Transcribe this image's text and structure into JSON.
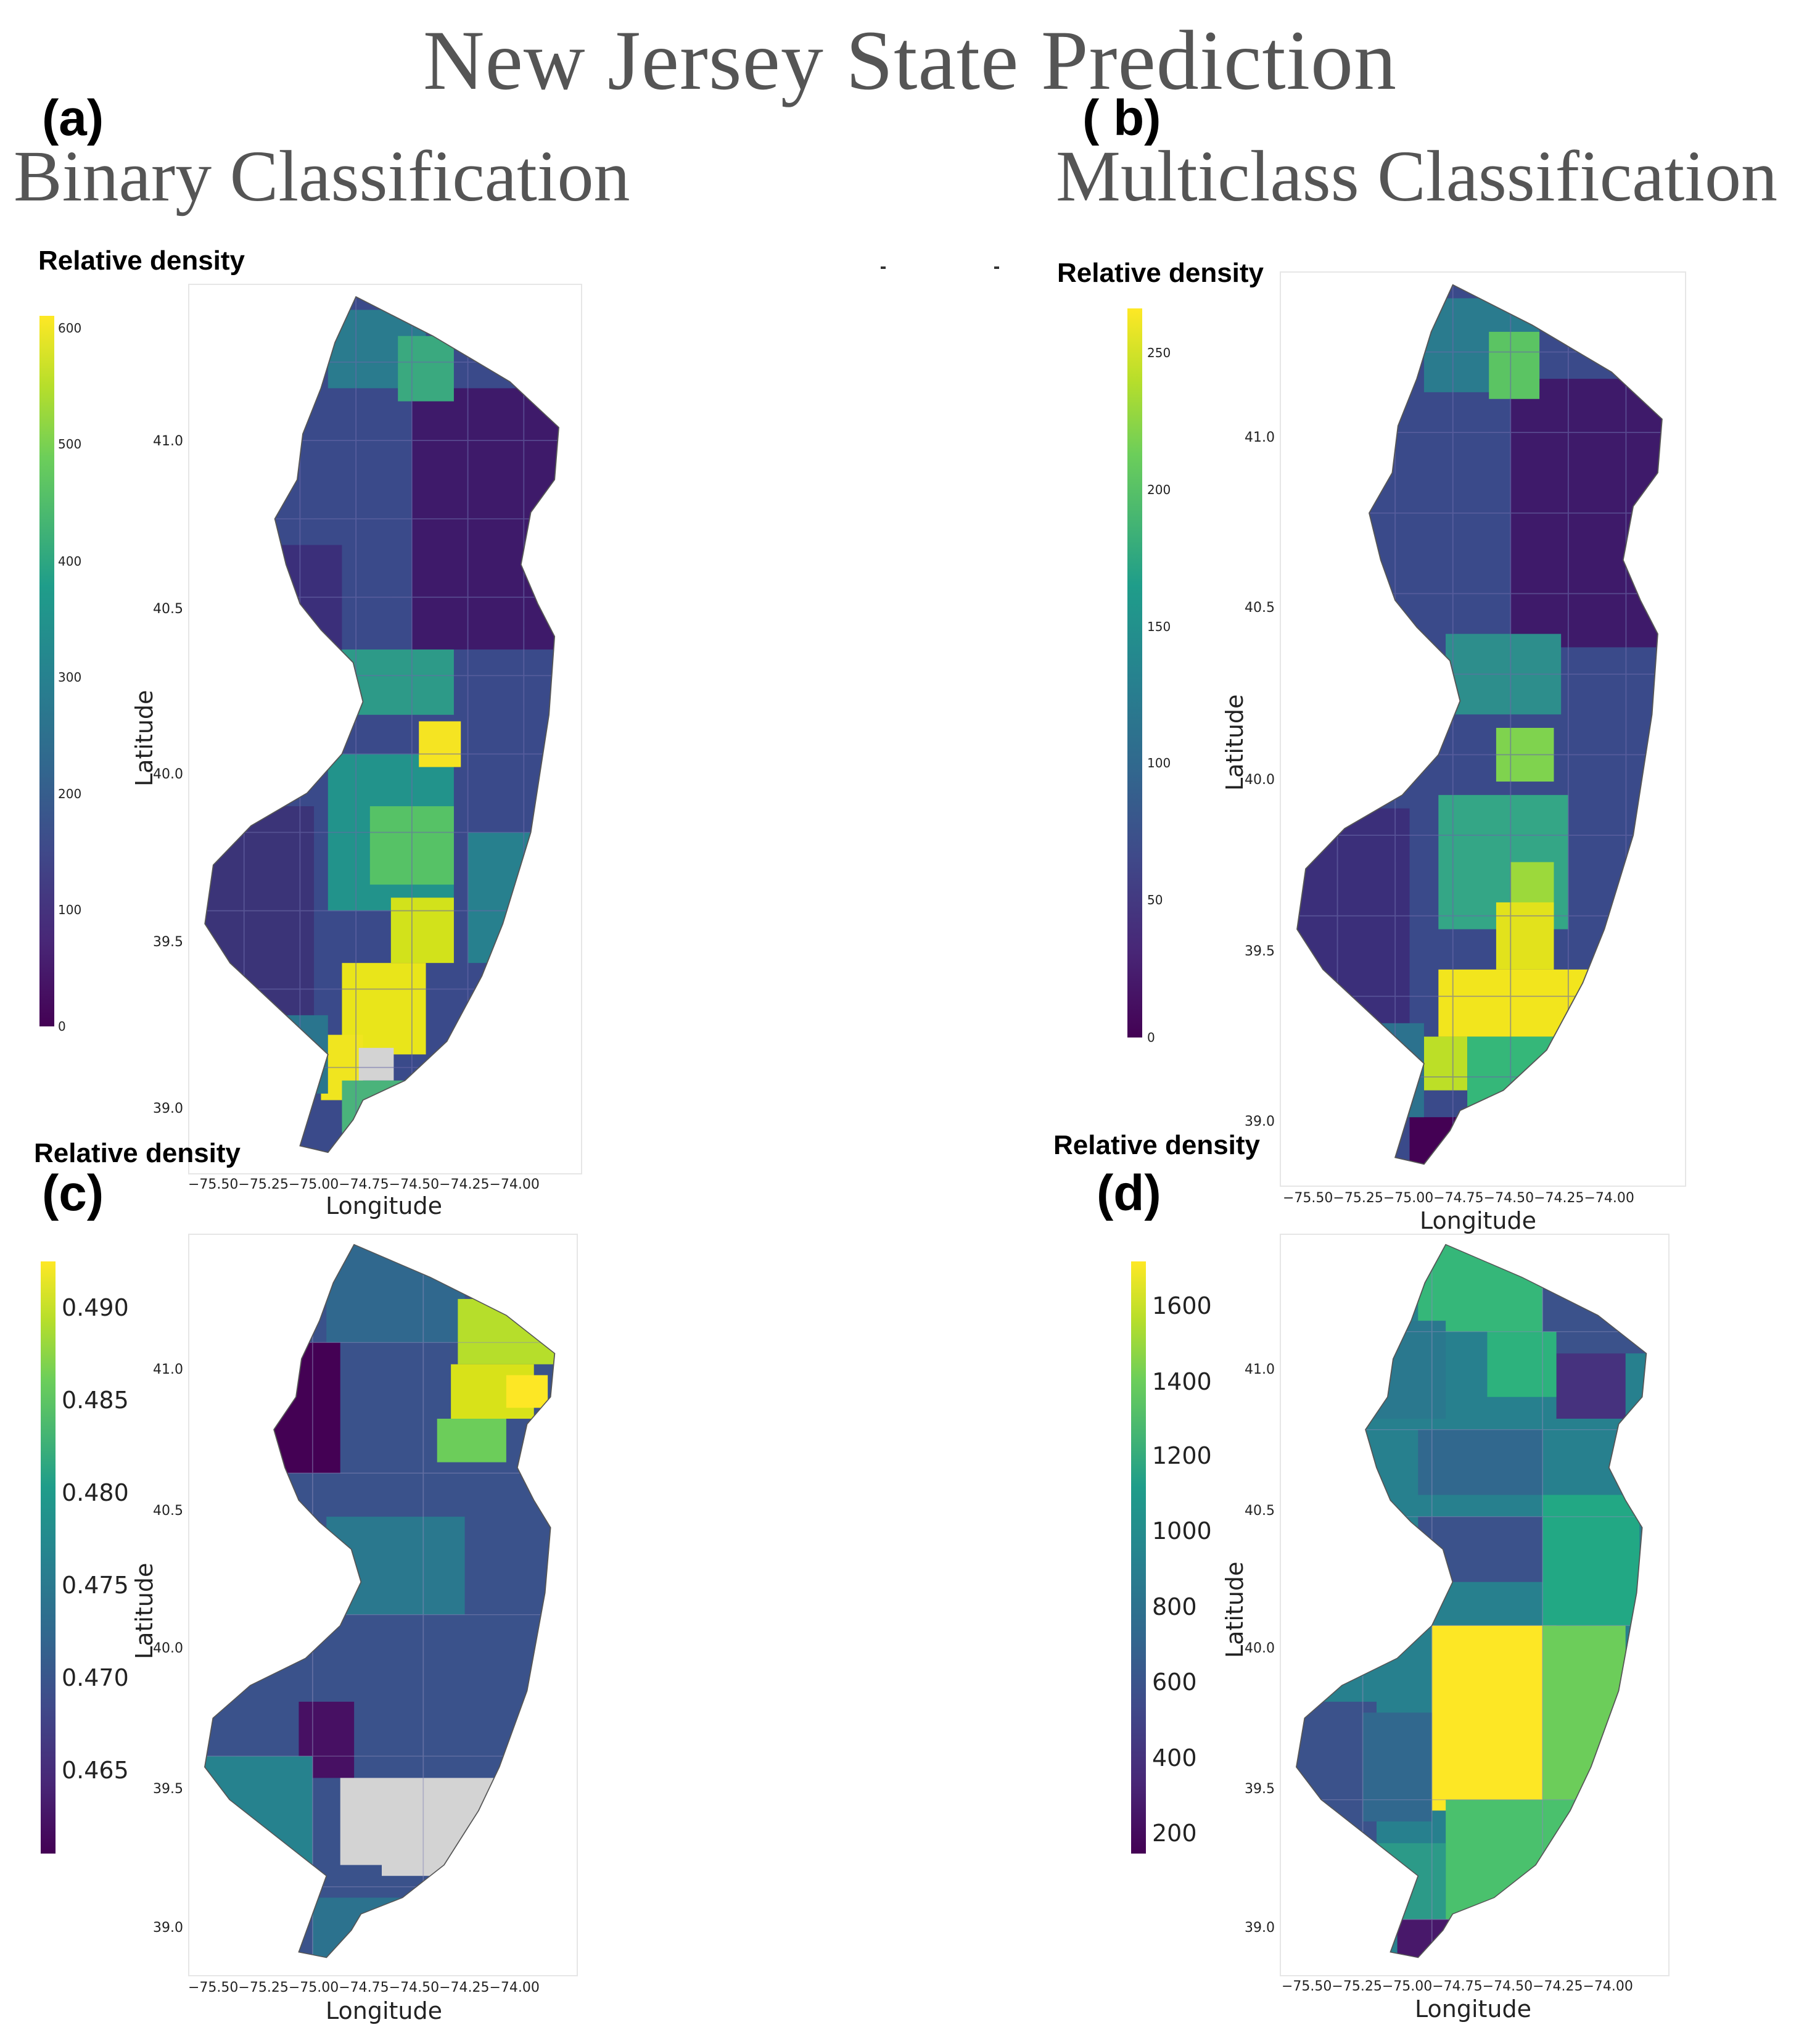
{
  "title": "New Jersey State Prediction",
  "panels": {
    "a": {
      "letter": "(a)",
      "subtitle": "Binary Classification",
      "colorbar_title": "Relative density",
      "colorbar_ticks": [
        "600",
        "500",
        "400",
        "300",
        "200",
        "100",
        "0"
      ],
      "lat_ticks": [
        "41.0",
        "40.5",
        "40.0",
        "39.5",
        "39.0"
      ],
      "lon_ticks": "−75.50−75.25−75.00−74.75−74.50−74.25−74.00",
      "xlabel": "Longitude",
      "ylabel": "Latitude"
    },
    "b": {
      "letter": "( b)",
      "subtitle": "Multiclass Classification",
      "colorbar_title": "Relative density",
      "colorbar_ticks": [
        "250",
        "200",
        "150",
        "100",
        "50",
        "0"
      ],
      "lat_ticks": [
        "41.0",
        "40.5",
        "40.0",
        "39.5",
        "39.0"
      ],
      "lon_ticks": "−75.50−75.25−75.00−74.75−74.50−74.25−74.00",
      "xlabel": "Longitude",
      "ylabel": "Latitude"
    },
    "c": {
      "letter": "(c)",
      "colorbar_title": "Relative density",
      "colorbar_ticks": [
        "0.490",
        "0.485",
        "0.480",
        "0.475",
        "0.470",
        "0.465"
      ],
      "lat_ticks": [
        "41.0",
        "40.5",
        "40.0",
        "39.5",
        "39.0"
      ],
      "lon_ticks": "−75.50−75.25−75.00−74.75−74.50−74.25−74.00",
      "xlabel": "Longitude",
      "ylabel": "Latitude"
    },
    "d": {
      "letter": "(d)",
      "colorbar_title": "Relative density",
      "colorbar_ticks": [
        "1600",
        "1400",
        "1200",
        "1000",
        "800",
        "600",
        "400",
        "200"
      ],
      "lat_ticks": [
        "41.0",
        "40.5",
        "40.0",
        "39.5",
        "39.0"
      ],
      "lon_ticks": "−75.50−75.25−75.00−74.75−74.50−74.25−74.00",
      "xlabel": "Longitude",
      "ylabel": "Latitude"
    }
  },
  "colormap": "viridis",
  "colors": {
    "missing": "#d3d3d3",
    "low": "#440154",
    "high": "#fde725"
  }
}
